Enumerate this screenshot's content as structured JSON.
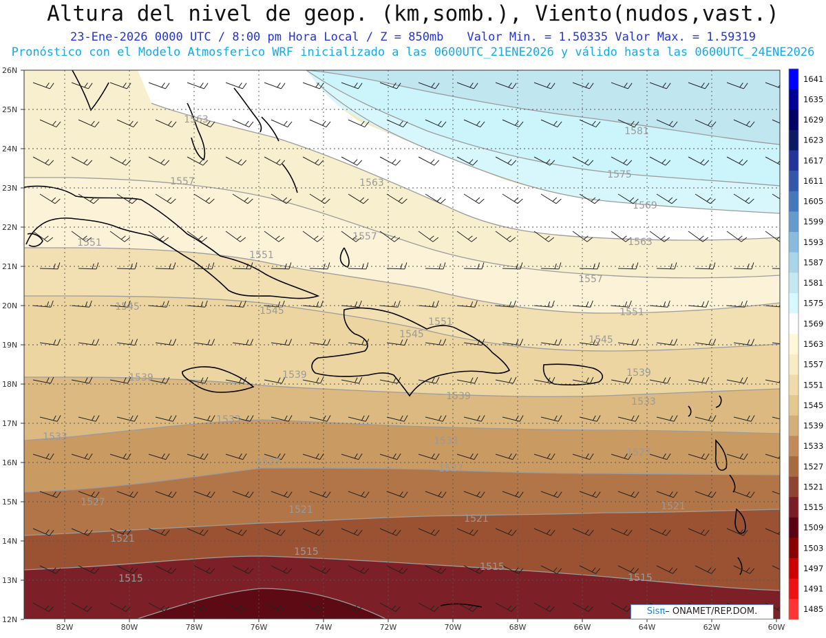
{
  "header": {
    "title": "Altura del nivel de geop. (km,somb.), Viento(nudos,vast.)",
    "line2_date": "23-Ene-2026  0000 UTC / 8:00 pm Hora Local / Z = 850mb",
    "line2_minmax": "Valor Min. = 1.50335  Valor Max. = 1.59319",
    "line3": "Pronóstico con el Modelo Atmosferico WRF inicializado a las 0600UTC_21ENE2026 y válido hasta las  0600UTC_24ENE2026"
  },
  "map": {
    "lon_labels": [
      "82W",
      "80W",
      "78W",
      "76W",
      "74W",
      "72W",
      "70W",
      "68W",
      "66W",
      "64W",
      "62W",
      "60W"
    ],
    "lat_labels": [
      "26N",
      "25N",
      "24N",
      "23N",
      "22N",
      "21N",
      "20N",
      "19N",
      "18N",
      "17N",
      "16N",
      "15N",
      "14N",
      "13N",
      "12N"
    ],
    "contour_labels": [
      {
        "text": "1581"
      },
      {
        "text": "1575"
      },
      {
        "text": "1569"
      },
      {
        "text": "1563"
      },
      {
        "text": "1563"
      },
      {
        "text": "1563"
      },
      {
        "text": "1557"
      },
      {
        "text": "1557"
      },
      {
        "text": "1557"
      },
      {
        "text": "1551"
      },
      {
        "text": "1551"
      },
      {
        "text": "1551"
      },
      {
        "text": "1551"
      },
      {
        "text": "1545"
      },
      {
        "text": "1545"
      },
      {
        "text": "1545"
      },
      {
        "text": "1545"
      },
      {
        "text": "1539"
      },
      {
        "text": "1539"
      },
      {
        "text": "1539"
      },
      {
        "text": "1539"
      },
      {
        "text": "1533"
      },
      {
        "text": "1533"
      },
      {
        "text": "1533"
      },
      {
        "text": "1533"
      },
      {
        "text": "1527"
      },
      {
        "text": "1527"
      },
      {
        "text": "1527"
      },
      {
        "text": "1527"
      },
      {
        "text": "1521"
      },
      {
        "text": "1521"
      },
      {
        "text": "1521"
      },
      {
        "text": "1521"
      },
      {
        "text": "1515"
      },
      {
        "text": "1515"
      },
      {
        "text": "1515"
      },
      {
        "text": "1515"
      }
    ]
  },
  "colorbar": {
    "levels": [
      "1641",
      "1635",
      "1629",
      "1623",
      "1617",
      "1611",
      "1605",
      "1599",
      "1593",
      "1587",
      "1581",
      "1575",
      "1569",
      "1563",
      "1557",
      "1551",
      "1545",
      "1539",
      "1533",
      "1527",
      "1521",
      "1515",
      "1509",
      "1503",
      "1497",
      "1491",
      "1485"
    ],
    "colors": [
      "#0000ff",
      "#000099",
      "#000066",
      "#0a1a66",
      "#223399",
      "#3355aa",
      "#4477bb",
      "#6699cc",
      "#88bbdd",
      "#a8d6e8",
      "#c4e8f2",
      "#d6f8ff",
      "#ffffff",
      "#fff8d8",
      "#f8ecc4",
      "#f0dcaa",
      "#e4c890",
      "#d4ae78",
      "#c08a5a",
      "#a86a40",
      "#8e4430",
      "#7a1c26",
      "#5a0010",
      "#880000",
      "#cc0000",
      "#ee1111",
      "#ff3333"
    ]
  },
  "credit": {
    "brand": "Sisπ",
    "rest": "– ONAMET/REP.DOM."
  }
}
